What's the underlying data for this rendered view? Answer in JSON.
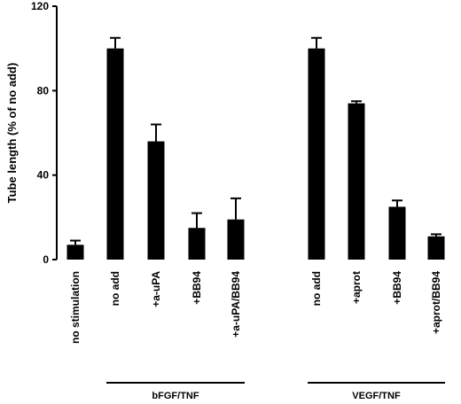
{
  "chart_data": {
    "type": "bar",
    "title": "",
    "xlabel": "",
    "ylabel": "Tube length (% of no add)",
    "ylim": [
      0,
      120
    ],
    "yticks": [
      0,
      40,
      80,
      120
    ],
    "grid": false,
    "color": "#000000",
    "categories": [
      "no stimulation",
      "no add",
      "+a-uPA",
      "+BB94",
      "+a-uPA/BB94",
      "no add",
      "+aprot",
      "+BB94",
      "+aprot/BB94"
    ],
    "values": [
      7,
      100,
      56,
      15,
      19,
      100,
      74,
      25,
      11
    ],
    "errors": [
      2,
      5,
      8,
      7,
      10,
      5,
      1,
      3,
      1
    ],
    "groups": [
      {
        "label": "bFGF/TNF",
        "from": 1,
        "to": 4
      },
      {
        "label": "VEGF/TNF",
        "from": 5,
        "to": 8
      }
    ]
  }
}
